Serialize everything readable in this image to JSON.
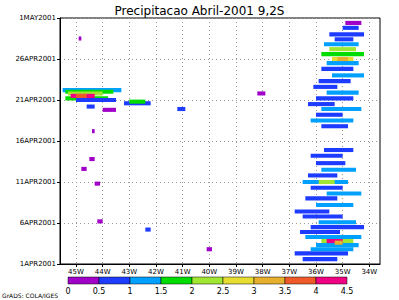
{
  "chart_data": {
    "type": "hovmoller",
    "title": "Precipitacao Abril-2001 9,2S",
    "xlim": [
      -45.6,
      -33.6
    ],
    "xticks": [
      {
        "value": -45,
        "label": "45W"
      },
      {
        "value": -44,
        "label": "44W"
      },
      {
        "value": -43,
        "label": "43W"
      },
      {
        "value": -42,
        "label": "42W"
      },
      {
        "value": -41,
        "label": "41W"
      },
      {
        "value": -40,
        "label": "40W"
      },
      {
        "value": -39,
        "label": "39W"
      },
      {
        "value": -38,
        "label": "38W"
      },
      {
        "value": -37,
        "label": "37W"
      },
      {
        "value": -36,
        "label": "36W"
      },
      {
        "value": -35,
        "label": "35W"
      },
      {
        "value": -34,
        "label": "34W"
      }
    ],
    "ylim": [
      1,
      31
    ],
    "yticks": [
      {
        "value": 1,
        "label": "1APR2001"
      },
      {
        "value": 6,
        "label": "6APR2001"
      },
      {
        "value": 11,
        "label": "11APR2001"
      },
      {
        "value": 16,
        "label": "16APR2001"
      },
      {
        "value": 21,
        "label": "21APR2001"
      },
      {
        "value": 26,
        "label": "26APR2001"
      },
      {
        "value": 31,
        "label": "1MAY2001"
      }
    ],
    "grid": true,
    "time_step_days": 0.5,
    "cells": [
      [
        -45.5,
        -43.3,
        22.2,
        1.2
      ],
      [
        -45.4,
        -43.6,
        22.0,
        1.8
      ],
      [
        -45.3,
        -44.0,
        21.8,
        2.2
      ],
      [
        -45.4,
        -43.8,
        21.2,
        1.6
      ],
      [
        -45.0,
        -43.5,
        21.0,
        0.8
      ],
      [
        -45.2,
        -44.3,
        21.5,
        4.2
      ],
      [
        -45.0,
        -44.6,
        21.5,
        3.6
      ],
      [
        -43.2,
        -42.2,
        20.6,
        0.8
      ],
      [
        -43.0,
        -42.4,
        20.8,
        1.8
      ],
      [
        -44.6,
        -44.3,
        20.2,
        0.6
      ],
      [
        -44.0,
        -43.5,
        19.8,
        0.4
      ],
      [
        -44.9,
        -44.8,
        28.5,
        0.3
      ],
      [
        -44.4,
        -44.3,
        17.2,
        0.3
      ],
      [
        -44.5,
        -44.3,
        13.8,
        0.4
      ],
      [
        -44.8,
        -44.6,
        12.6,
        0.3
      ],
      [
        -44.3,
        -44.1,
        10.8,
        0.3
      ],
      [
        -44.2,
        -44.0,
        6.2,
        0.3
      ],
      [
        -42.4,
        -42.2,
        5.2,
        0.6
      ],
      [
        -41.2,
        -40.9,
        19.9,
        0.7
      ],
      [
        -40.1,
        -39.9,
        2.8,
        0.4
      ],
      [
        -38.2,
        -37.9,
        21.8,
        0.3
      ],
      [
        -36.5,
        -35.2,
        1.6,
        0.7
      ],
      [
        -36.8,
        -34.8,
        2.3,
        0.8
      ],
      [
        -36.2,
        -34.6,
        2.8,
        1.0
      ],
      [
        -36.0,
        -34.4,
        3.3,
        1.2
      ],
      [
        -35.8,
        -34.6,
        3.8,
        2.4
      ],
      [
        -35.6,
        -35.0,
        3.8,
        4.0
      ],
      [
        -35.3,
        -35.0,
        3.6,
        3.2
      ],
      [
        -36.4,
        -34.3,
        4.3,
        1.1
      ],
      [
        -36.6,
        -35.1,
        4.9,
        0.7
      ],
      [
        -36.2,
        -34.2,
        5.5,
        0.9
      ],
      [
        -35.9,
        -34.5,
        6.1,
        1.3
      ],
      [
        -36.5,
        -35.0,
        6.8,
        0.6
      ],
      [
        -36.8,
        -35.5,
        7.4,
        0.7
      ],
      [
        -36.0,
        -34.6,
        8.2,
        1.1
      ],
      [
        -36.4,
        -35.2,
        9.0,
        0.8
      ],
      [
        -35.6,
        -34.3,
        9.6,
        1.4
      ],
      [
        -36.2,
        -35.0,
        10.3,
        0.7
      ],
      [
        -36.5,
        -34.8,
        11.0,
        1.2
      ],
      [
        -35.9,
        -35.3,
        11.0,
        2.1
      ],
      [
        -36.3,
        -35.2,
        11.8,
        0.8
      ],
      [
        -35.8,
        -34.5,
        12.5,
        1.0
      ],
      [
        -36.0,
        -34.9,
        13.3,
        0.7
      ],
      [
        -36.2,
        -35.0,
        14.2,
        0.9
      ],
      [
        -35.7,
        -34.6,
        14.9,
        0.6
      ],
      [
        -35.8,
        -34.8,
        17.8,
        0.8
      ],
      [
        -36.2,
        -34.6,
        18.5,
        1.1
      ],
      [
        -36.0,
        -35.0,
        19.2,
        0.7
      ],
      [
        -35.8,
        -34.3,
        19.9,
        1.0
      ],
      [
        -36.3,
        -35.3,
        20.5,
        0.6
      ],
      [
        -36.0,
        -34.6,
        21.2,
        0.9
      ],
      [
        -35.6,
        -34.4,
        21.9,
        1.2
      ],
      [
        -36.1,
        -35.2,
        22.6,
        0.7
      ],
      [
        -35.9,
        -34.7,
        23.3,
        0.8
      ],
      [
        -35.4,
        -34.2,
        24.0,
        1.0
      ],
      [
        -35.8,
        -34.6,
        24.8,
        0.8
      ],
      [
        -35.6,
        -34.4,
        25.5,
        1.3
      ],
      [
        -35.4,
        -34.6,
        26.0,
        2.6
      ],
      [
        -35.2,
        -34.8,
        26.0,
        3.4
      ],
      [
        -35.8,
        -34.2,
        26.6,
        1.6
      ],
      [
        -35.5,
        -34.5,
        27.2,
        2.2
      ],
      [
        -35.7,
        -34.4,
        27.8,
        1.1
      ],
      [
        -35.3,
        -34.6,
        28.4,
        0.7
      ],
      [
        -35.5,
        -34.2,
        29.0,
        0.9
      ],
      [
        -35.0,
        -34.4,
        29.8,
        0.6
      ],
      [
        -34.9,
        -34.3,
        30.4,
        0.4
      ]
    ],
    "colorbar": {
      "bounds": [
        0,
        0.5,
        1,
        1.5,
        2,
        2.5,
        3,
        3.5,
        4,
        4.5
      ],
      "colors": [
        "#a000c8",
        "#1e3cff",
        "#00a0ff",
        "#00dc00",
        "#a0e632",
        "#e6dc32",
        "#e6af2d",
        "#f05a28",
        "#f00082"
      ]
    },
    "annotations": [
      "GrADS: COLA/IGES"
    ]
  }
}
